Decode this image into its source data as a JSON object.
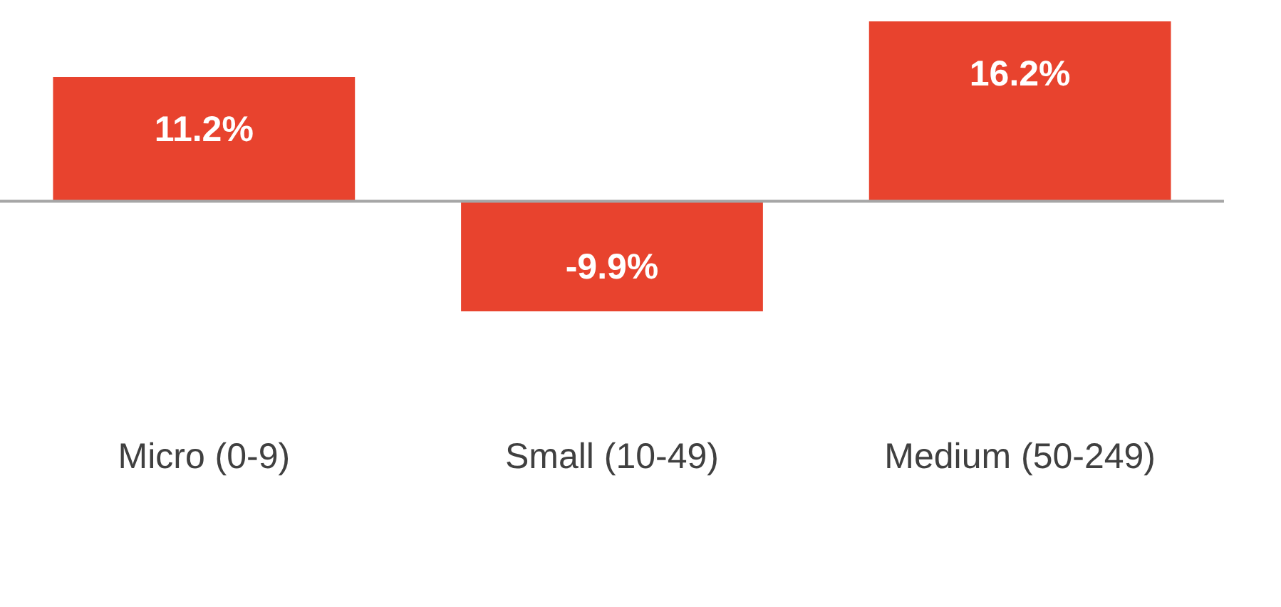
{
  "chart_data": {
    "type": "bar",
    "categories": [
      "Micro (0-9)",
      "Small (10-49)",
      "Medium (50-249)"
    ],
    "values": [
      11.2,
      -9.9,
      16.2
    ],
    "value_labels": [
      "11.2%",
      "-9.9%",
      "16.2%"
    ],
    "color": "#e8432e",
    "grid": false,
    "legend": false,
    "ref_lines": [
      {
        "axis": "y",
        "value": 0,
        "color": "#a6a6a6"
      }
    ]
  }
}
